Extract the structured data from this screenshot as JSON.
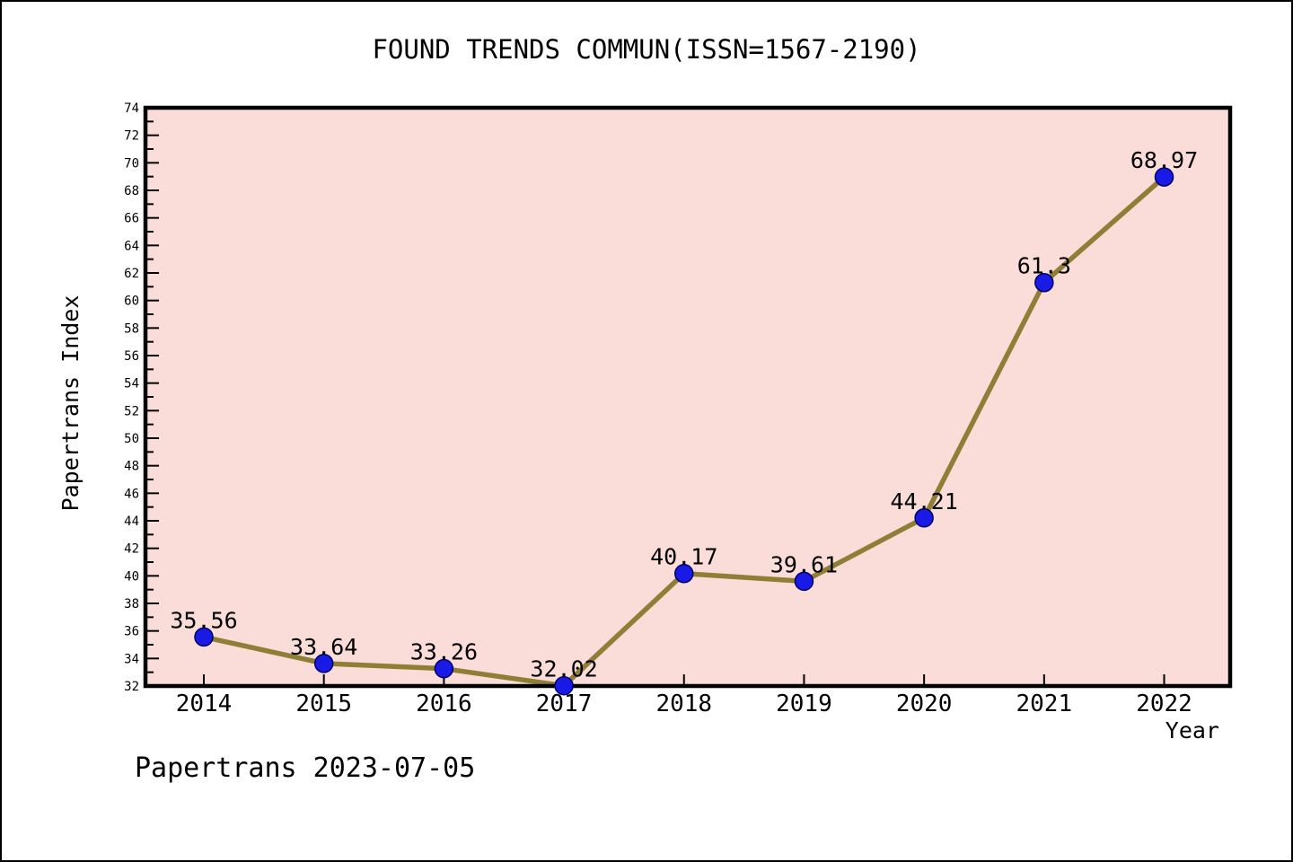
{
  "figure": {
    "footer": "Papertrans 2023-07-05"
  },
  "chart_data": {
    "type": "line",
    "title": "FOUND TRENDS COMMUN(ISSN=1567-2190)",
    "xlabel": "Year",
    "ylabel": "Papertrans Index",
    "categories": [
      "2014",
      "2015",
      "2016",
      "2017",
      "2018",
      "2019",
      "2020",
      "2021",
      "2022"
    ],
    "values": [
      35.56,
      33.64,
      33.26,
      32.02,
      40.17,
      39.61,
      44.21,
      61.3,
      68.97
    ],
    "point_labels": [
      "35.56",
      "33.64",
      "33.26",
      "32.02",
      "40.17",
      "39.61",
      "44.21",
      "61.3",
      "68.97"
    ],
    "ylim": [
      32,
      74
    ],
    "ytick_major_step": 2,
    "ytick_minor_step": 1,
    "grid": false,
    "legend": "none",
    "colors": {
      "plot_bg": "#fadcd9",
      "line": "#8f7e35",
      "marker_fill": "#1a1ae6",
      "marker_edge": "#000060",
      "axis": "#000000",
      "text": "#000000"
    }
  }
}
